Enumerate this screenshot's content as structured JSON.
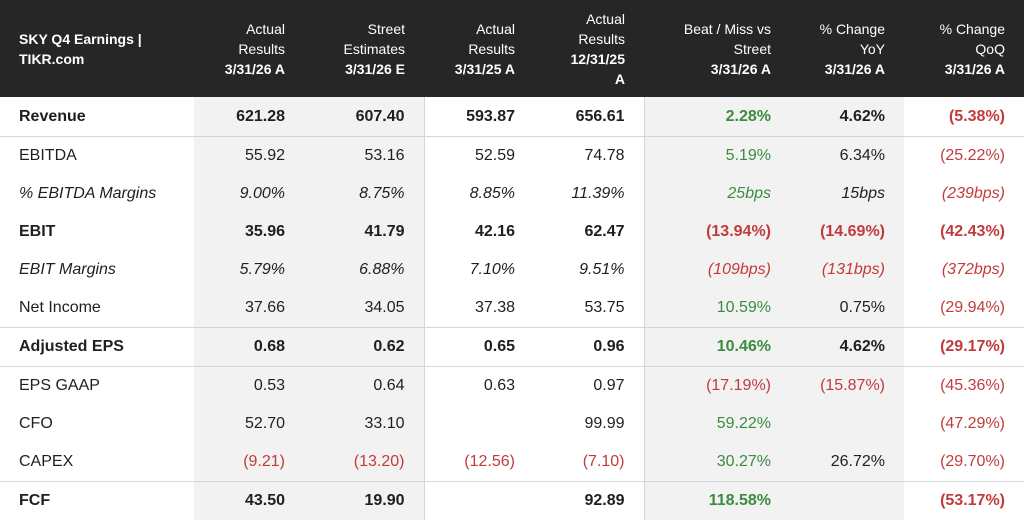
{
  "header": {
    "title_line1": "SKY Q4 Earnings |",
    "title_line2": "TIKR.com",
    "columns": [
      {
        "line1": "Actual",
        "line2": "Results",
        "line3": "3/31/26 A"
      },
      {
        "line1": "Street",
        "line2": "Estimates",
        "line3": "3/31/26 E"
      },
      {
        "line1": "Actual",
        "line2": "Results",
        "line3": "3/31/25 A"
      },
      {
        "line1": "Actual",
        "line2": "Results",
        "line3": "12/31/25",
        "line4": "A"
      },
      {
        "line1": "Beat / Miss vs",
        "line2": "Street",
        "line3": "3/31/26 A"
      },
      {
        "line1": "% Change",
        "line2": "YoY",
        "line3": "3/31/26 A"
      },
      {
        "line1": "% Change",
        "line2": "QoQ",
        "line3": "3/31/26 A"
      }
    ]
  },
  "rows": [
    {
      "label": "Revenue",
      "cells": [
        "621.28",
        "607.40",
        "593.87",
        "656.61",
        "2.28%",
        "4.62%",
        "(5.38%)"
      ],
      "tone": [
        "neu",
        "neu",
        "neu",
        "neu",
        "pos",
        "neu",
        "neg"
      ]
    },
    {
      "label": "EBITDA",
      "cells": [
        "55.92",
        "53.16",
        "52.59",
        "74.78",
        "5.19%",
        "6.34%",
        "(25.22%)"
      ],
      "tone": [
        "neu",
        "neu",
        "neu",
        "neu",
        "pos",
        "neu",
        "neg"
      ]
    },
    {
      "label": "% EBITDA Margins",
      "cells": [
        "9.00%",
        "8.75%",
        "8.85%",
        "11.39%",
        "25bps",
        "15bps",
        "(239bps)"
      ],
      "tone": [
        "neu",
        "neu",
        "neu",
        "neu",
        "pos",
        "neu",
        "neg"
      ]
    },
    {
      "label": "EBIT",
      "cells": [
        "35.96",
        "41.79",
        "42.16",
        "62.47",
        "(13.94%)",
        "(14.69%)",
        "(42.43%)"
      ],
      "tone": [
        "neu",
        "neu",
        "neu",
        "neu",
        "neg",
        "neg",
        "neg"
      ]
    },
    {
      "label": "EBIT Margins",
      "cells": [
        "5.79%",
        "6.88%",
        "7.10%",
        "9.51%",
        "(109bps)",
        "(131bps)",
        "(372bps)"
      ],
      "tone": [
        "neu",
        "neu",
        "neu",
        "neu",
        "neg",
        "neg",
        "neg"
      ]
    },
    {
      "label": "Net Income",
      "cells": [
        "37.66",
        "34.05",
        "37.38",
        "53.75",
        "10.59%",
        "0.75%",
        "(29.94%)"
      ],
      "tone": [
        "neu",
        "neu",
        "neu",
        "neu",
        "pos",
        "neu",
        "neg"
      ]
    },
    {
      "label": "Adjusted EPS",
      "cells": [
        "0.68",
        "0.62",
        "0.65",
        "0.96",
        "10.46%",
        "4.62%",
        "(29.17%)"
      ],
      "tone": [
        "neu",
        "neu",
        "neu",
        "neu",
        "pos",
        "neu",
        "neg"
      ]
    },
    {
      "label": "EPS GAAP",
      "cells": [
        "0.53",
        "0.64",
        "0.63",
        "0.97",
        "(17.19%)",
        "(15.87%)",
        "(45.36%)"
      ],
      "tone": [
        "neu",
        "neu",
        "neu",
        "neu",
        "neg",
        "neg",
        "neg"
      ]
    },
    {
      "label": "CFO",
      "cells": [
        "52.70",
        "33.10",
        "",
        "99.99",
        "59.22%",
        "",
        "(47.29%)"
      ],
      "tone": [
        "neu",
        "neu",
        "neu",
        "neu",
        "pos",
        "neu",
        "neg"
      ]
    },
    {
      "label": "CAPEX",
      "cells": [
        "(9.21)",
        "(13.20)",
        "(12.56)",
        "(7.10)",
        "30.27%",
        "26.72%",
        "(29.70%)"
      ],
      "tone": [
        "neg",
        "neg",
        "neg",
        "neg",
        "pos",
        "neu",
        "neg"
      ]
    },
    {
      "label": "FCF",
      "cells": [
        "43.50",
        "19.90",
        "",
        "92.89",
        "118.58%",
        "",
        "(53.17%)"
      ],
      "tone": [
        "neu",
        "neu",
        "neu",
        "neu",
        "pos",
        "neu",
        "neg"
      ]
    }
  ],
  "colors": {
    "header_bg": "#262626",
    "positive": "#3a8c3f",
    "negative": "#c23b3b",
    "shade": "#f2f2f2"
  }
}
